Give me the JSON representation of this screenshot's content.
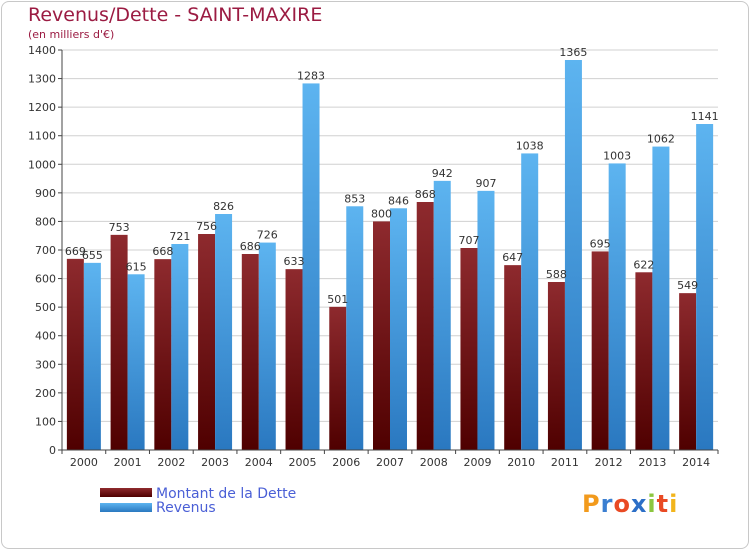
{
  "header": {
    "title": "Revenus/Dette - SAINT-MAXIRE",
    "subtitle": "(en milliers d'€)"
  },
  "legend": {
    "items": [
      {
        "label": "Montant de la Dette",
        "color": "#7a1a1e"
      },
      {
        "label": "Revenus",
        "color": "#4aa3e6"
      }
    ]
  },
  "logo": {
    "text": "Proxiti",
    "letters": [
      "P",
      "r",
      "o",
      "x",
      "i",
      "t",
      "i"
    ],
    "colors": [
      "#f29a1c",
      "#3b7fd1",
      "#e94a24",
      "#2c6fc7",
      "#8cc63f",
      "#e94a24",
      "#f2b51c"
    ]
  },
  "chart_data": {
    "type": "bar",
    "categories": [
      "2000",
      "2001",
      "2002",
      "2003",
      "2004",
      "2005",
      "2006",
      "2007",
      "2008",
      "2009",
      "2010",
      "2011",
      "2012",
      "2013",
      "2014"
    ],
    "series": [
      {
        "name": "Montant de la Dette",
        "color": "#7a1a1e",
        "values": [
          669,
          753,
          668,
          756,
          686,
          633,
          501,
          800,
          868,
          707,
          647,
          588,
          695,
          622,
          549
        ]
      },
      {
        "name": "Revenus",
        "color": "#4aa3e6",
        "values": [
          655,
          615,
          721,
          826,
          726,
          1283,
          853,
          846,
          942,
          907,
          1038,
          1365,
          1003,
          1062,
          1141
        ]
      }
    ],
    "title": "Revenus/Dette - SAINT-MAXIRE",
    "subtitle": "(en milliers d'€)",
    "xlabel": "",
    "ylabel": "",
    "ylim": [
      0,
      1400
    ],
    "yticks": [
      0,
      100,
      200,
      300,
      400,
      500,
      600,
      700,
      800,
      900,
      1000,
      1100,
      1200,
      1300,
      1400
    ],
    "grid": true,
    "legend_position": "bottom-left"
  }
}
